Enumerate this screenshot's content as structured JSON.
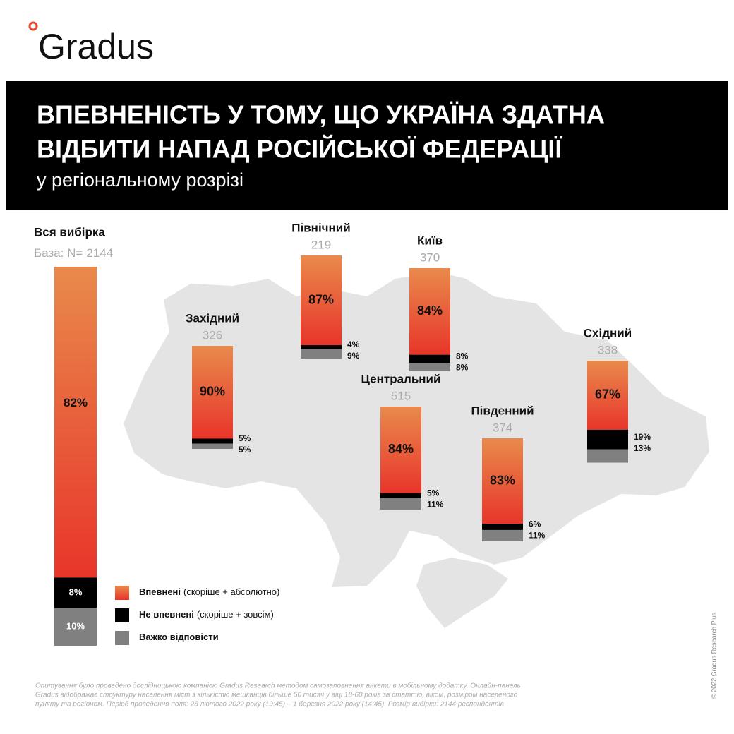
{
  "brand": "Gradus",
  "header": {
    "title_lines": [
      "ВПЕВНЕНІСТЬ У ТОМУ, ЩО УКРАЇНА ЗДАТНА",
      "ВІДБИТИ НАПАД РОСІЙСЬКОЇ ФЕДЕРАЦІЇ"
    ],
    "subtitle": "у регіональному розрізі"
  },
  "chart_data": {
    "type": "stacked-bar",
    "categories": [
      "Вся вибірка",
      "Західний",
      "Північний",
      "Київ",
      "Центральний",
      "Південний",
      "Східний"
    ],
    "base_label": "База: N=",
    "bases": [
      2144,
      326,
      219,
      370,
      515,
      374,
      338
    ],
    "series": [
      {
        "name": "Впевнені",
        "description": "(скоріше + абсолютно)",
        "color": "#e8352a",
        "values": [
          82,
          90,
          87,
          84,
          84,
          83,
          67
        ],
        "value_labels": [
          "82%",
          "90%",
          "87%",
          "84%",
          "84%",
          "83%",
          "67%"
        ]
      },
      {
        "name": "Не впевнені",
        "description": "(скоріше + зовсім)",
        "color": "#000000",
        "values": [
          8,
          5,
          4,
          8,
          5,
          6,
          19
        ],
        "value_labels": [
          "8%",
          "5%",
          "4%",
          "8%",
          "5%",
          "6%",
          "19%"
        ]
      },
      {
        "name": "Важко відповісти",
        "color": "#808080",
        "values": [
          10,
          5,
          9,
          8,
          11,
          11,
          13
        ],
        "value_labels": [
          "10%",
          "5%",
          "9%",
          "8%",
          "11%",
          "11%",
          "13%"
        ]
      }
    ]
  },
  "footnote": [
    "Опитування було проведено дослідницькою компанією Gradus Research методом самозаповнення анкети в мобільному додатку. Онлайн-панель",
    "Gradus відображає структуру населення міст з кількістю мешканців більше 50 тисяч у віці 18-60 років за статтю, віком, розміром населеного",
    "пункту та регіоном. Період проведення поля: 28 лютого 2022 року (19:45) – 1 березня 2022 року (14:45). Розмір вибірки: 2144 респондентів"
  ],
  "copyright": "© 2022 Gradus Research Plus"
}
